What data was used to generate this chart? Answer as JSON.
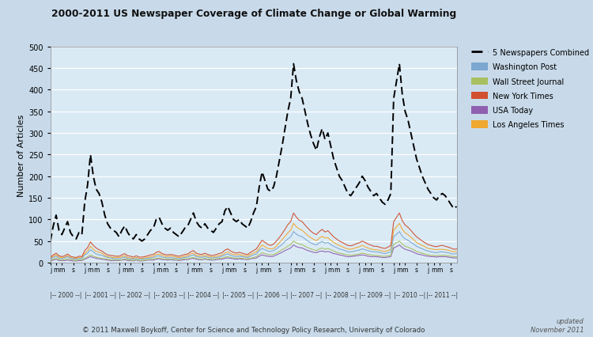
{
  "title": "2000-2011 US Newspaper Coverage of Climate Change or Global Warming",
  "ylabel": "Number of Articles",
  "background_color": "#c8daea",
  "plot_bg_color": "#daeaf5",
  "legend_labels": [
    "5 Newspapers Combined",
    "Washington Post",
    "Wall Street Journal",
    "New York Times",
    "USA Today",
    "Los Angeles Times"
  ],
  "legend_colors": [
    "#000000",
    "#7ba7d0",
    "#a8c060",
    "#d05030",
    "#9060b0",
    "#f0a830"
  ],
  "footer": "© 2011 Maxwell Boykoff, Center for Science and Technology Policy Research, University of Colorado",
  "footer_right": "updated\nNovember 2011",
  "yticks": [
    0,
    50,
    100,
    150,
    200,
    250,
    300,
    350,
    400,
    450,
    500
  ],
  "combined": [
    50,
    85,
    110,
    75,
    65,
    80,
    95,
    70,
    60,
    55,
    70,
    65,
    140,
    180,
    250,
    200,
    170,
    160,
    140,
    110,
    90,
    80,
    75,
    70,
    60,
    75,
    85,
    70,
    60,
    55,
    65,
    55,
    50,
    55,
    65,
    75,
    80,
    100,
    105,
    90,
    80,
    75,
    80,
    70,
    65,
    60,
    70,
    80,
    85,
    100,
    115,
    95,
    85,
    80,
    90,
    80,
    75,
    70,
    80,
    90,
    95,
    120,
    130,
    115,
    100,
    95,
    100,
    90,
    85,
    80,
    95,
    115,
    130,
    175,
    210,
    190,
    170,
    165,
    175,
    200,
    235,
    270,
    310,
    350,
    380,
    460,
    420,
    395,
    380,
    350,
    320,
    295,
    275,
    260,
    290,
    310,
    285,
    300,
    270,
    240,
    220,
    200,
    190,
    175,
    160,
    155,
    165,
    175,
    185,
    200,
    190,
    175,
    165,
    155,
    160,
    150,
    140,
    135,
    145,
    160,
    380,
    420,
    460,
    390,
    350,
    330,
    300,
    270,
    240,
    220,
    200,
    185,
    170,
    160,
    150,
    145,
    155,
    160,
    155,
    145,
    135,
    125,
    130,
    120
  ],
  "washington_post": [
    8,
    12,
    15,
    10,
    9,
    11,
    14,
    10,
    9,
    8,
    10,
    9,
    18,
    22,
    30,
    25,
    20,
    18,
    17,
    14,
    12,
    11,
    10,
    9,
    9,
    11,
    13,
    10,
    9,
    8,
    10,
    8,
    8,
    9,
    10,
    11,
    12,
    15,
    16,
    13,
    12,
    11,
    12,
    11,
    10,
    9,
    11,
    12,
    13,
    16,
    18,
    14,
    13,
    12,
    14,
    12,
    11,
    11,
    12,
    13,
    15,
    18,
    20,
    17,
    15,
    14,
    15,
    14,
    13,
    12,
    15,
    18,
    20,
    28,
    33,
    30,
    27,
    26,
    28,
    32,
    37,
    42,
    49,
    55,
    60,
    72,
    66,
    62,
    60,
    55,
    50,
    46,
    43,
    41,
    46,
    49,
    45,
    47,
    42,
    38,
    35,
    32,
    30,
    28,
    25,
    25,
    26,
    28,
    29,
    32,
    30,
    28,
    26,
    25,
    25,
    24,
    22,
    21,
    23,
    25,
    60,
    66,
    72,
    61,
    55,
    52,
    47,
    43,
    38,
    35,
    32,
    29,
    27,
    25,
    24,
    23,
    25,
    25,
    24,
    23,
    21,
    20,
    21,
    19
  ],
  "wsj": [
    5,
    8,
    10,
    7,
    6,
    7,
    9,
    7,
    6,
    5,
    7,
    6,
    10,
    14,
    18,
    15,
    13,
    11,
    10,
    9,
    8,
    7,
    7,
    6,
    6,
    7,
    9,
    7,
    6,
    5,
    7,
    5,
    5,
    6,
    7,
    8,
    8,
    10,
    11,
    9,
    8,
    8,
    8,
    8,
    7,
    7,
    8,
    9,
    9,
    11,
    12,
    10,
    9,
    8,
    10,
    8,
    8,
    7,
    9,
    10,
    10,
    13,
    14,
    12,
    11,
    10,
    11,
    10,
    9,
    9,
    10,
    12,
    14,
    19,
    23,
    21,
    19,
    18,
    19,
    22,
    26,
    30,
    34,
    38,
    42,
    50,
    46,
    43,
    42,
    38,
    35,
    32,
    30,
    28,
    32,
    34,
    31,
    33,
    30,
    27,
    24,
    22,
    21,
    19,
    18,
    17,
    18,
    19,
    20,
    22,
    21,
    19,
    18,
    17,
    17,
    16,
    15,
    15,
    16,
    17,
    42,
    46,
    50,
    43,
    38,
    36,
    33,
    30,
    26,
    24,
    22,
    20,
    18,
    17,
    17,
    16,
    17,
    17,
    17,
    16,
    15,
    14,
    14,
    13
  ],
  "nyt": [
    12,
    18,
    22,
    16,
    14,
    16,
    20,
    15,
    13,
    12,
    15,
    14,
    28,
    35,
    48,
    40,
    34,
    30,
    27,
    22,
    18,
    17,
    16,
    15,
    15,
    18,
    21,
    16,
    15,
    13,
    16,
    13,
    13,
    14,
    16,
    18,
    19,
    24,
    26,
    21,
    19,
    18,
    19,
    18,
    16,
    15,
    17,
    19,
    20,
    25,
    28,
    22,
    20,
    19,
    22,
    19,
    17,
    17,
    19,
    21,
    23,
    29,
    32,
    27,
    24,
    22,
    24,
    22,
    20,
    19,
    24,
    28,
    32,
    42,
    52,
    47,
    42,
    40,
    43,
    50,
    58,
    67,
    77,
    88,
    95,
    115,
    105,
    98,
    95,
    87,
    80,
    73,
    68,
    65,
    72,
    77,
    71,
    74,
    67,
    60,
    55,
    50,
    47,
    43,
    40,
    39,
    41,
    44,
    46,
    50,
    47,
    43,
    41,
    38,
    38,
    36,
    34,
    33,
    36,
    40,
    95,
    105,
    115,
    97,
    87,
    82,
    75,
    67,
    60,
    55,
    50,
    46,
    42,
    40,
    38,
    37,
    39,
    40,
    38,
    36,
    34,
    31,
    32,
    30
  ],
  "usa_today": [
    4,
    6,
    8,
    5,
    5,
    5,
    6,
    5,
    4,
    4,
    5,
    5,
    8,
    11,
    14,
    12,
    10,
    9,
    8,
    7,
    6,
    5,
    5,
    5,
    5,
    6,
    7,
    5,
    5,
    4,
    6,
    4,
    4,
    5,
    6,
    6,
    6,
    8,
    9,
    7,
    7,
    6,
    7,
    6,
    6,
    5,
    6,
    7,
    7,
    9,
    10,
    8,
    7,
    7,
    8,
    7,
    6,
    6,
    7,
    8,
    8,
    10,
    11,
    10,
    9,
    8,
    9,
    8,
    8,
    7,
    9,
    10,
    11,
    15,
    18,
    16,
    15,
    14,
    15,
    18,
    21,
    24,
    28,
    31,
    34,
    41,
    37,
    35,
    34,
    31,
    28,
    26,
    24,
    23,
    26,
    27,
    25,
    26,
    24,
    21,
    20,
    18,
    17,
    15,
    14,
    14,
    15,
    16,
    17,
    18,
    17,
    15,
    14,
    14,
    14,
    13,
    12,
    12,
    13,
    14,
    34,
    37,
    41,
    35,
    31,
    29,
    27,
    24,
    21,
    19,
    18,
    16,
    15,
    14,
    14,
    13,
    14,
    14,
    14,
    13,
    12,
    11,
    11,
    10
  ],
  "lat": [
    10,
    15,
    18,
    13,
    11,
    13,
    16,
    12,
    10,
    10,
    12,
    11,
    22,
    27,
    38,
    31,
    26,
    24,
    22,
    17,
    14,
    13,
    12,
    12,
    12,
    14,
    16,
    12,
    11,
    10,
    12,
    10,
    10,
    11,
    12,
    14,
    15,
    19,
    20,
    17,
    15,
    14,
    16,
    14,
    13,
    12,
    13,
    15,
    16,
    20,
    22,
    17,
    16,
    15,
    17,
    15,
    14,
    13,
    15,
    16,
    18,
    22,
    25,
    21,
    19,
    18,
    19,
    17,
    16,
    15,
    19,
    22,
    25,
    33,
    41,
    37,
    33,
    32,
    33,
    38,
    46,
    53,
    61,
    69,
    75,
    91,
    83,
    78,
    75,
    69,
    63,
    58,
    54,
    51,
    57,
    61,
    57,
    58,
    52,
    47,
    43,
    40,
    37,
    34,
    32,
    31,
    33,
    35,
    37,
    40,
    37,
    34,
    32,
    30,
    30,
    29,
    27,
    26,
    28,
    31,
    75,
    83,
    91,
    77,
    69,
    65,
    59,
    53,
    47,
    43,
    40,
    37,
    33,
    32,
    31,
    30,
    31,
    31,
    30,
    29,
    27,
    25,
    26,
    24
  ]
}
